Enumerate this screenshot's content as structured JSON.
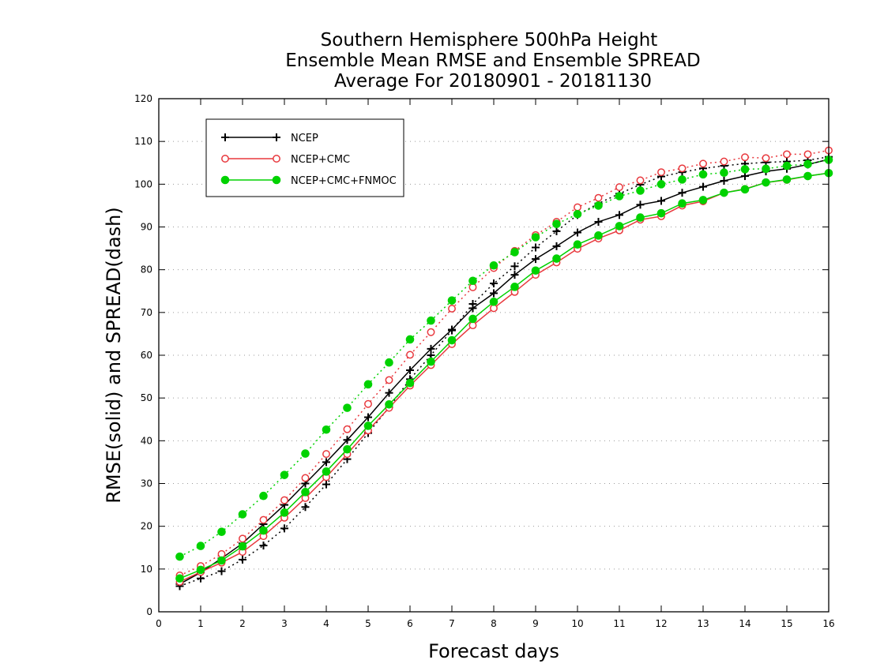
{
  "chart_data": {
    "type": "line",
    "title_lines": [
      "Southern Hemisphere 500hPa Height",
      "Ensemble Mean RMSE and Ensemble SPREAD",
      "Average For 20180901 - 20181130"
    ],
    "xlabel": "Forecast days",
    "ylabel": "RMSE(solid) and SPREAD(dash)",
    "xlim": [
      0,
      16
    ],
    "ylim": [
      0,
      120
    ],
    "x_ticks": [
      0,
      1,
      2,
      3,
      4,
      5,
      6,
      7,
      8,
      9,
      10,
      11,
      12,
      13,
      14,
      15,
      16
    ],
    "y_ticks": [
      0,
      10,
      20,
      30,
      40,
      50,
      60,
      70,
      80,
      90,
      100,
      110,
      120
    ],
    "grid": "horizontal dotted",
    "legend_position": "top-left",
    "x": [
      0.5,
      1,
      1.5,
      2,
      2.5,
      3,
      3.5,
      4,
      4.5,
      5,
      5.5,
      6,
      6.5,
      7,
      7.5,
      8,
      8.5,
      9,
      9.5,
      10,
      10.5,
      11,
      11.5,
      12,
      12.5,
      13,
      13.5,
      14,
      14.5,
      15,
      15.5,
      16
    ],
    "series": [
      {
        "name": "NCEP",
        "color": "#000000",
        "marker": "plus",
        "rmse": [
          6.5,
          9.2,
          12.5,
          16.0,
          20.5,
          25.0,
          30.0,
          35.0,
          40.2,
          45.5,
          51.2,
          56.5,
          61.5,
          66.0,
          71.0,
          74.5,
          78.8,
          82.5,
          85.5,
          88.7,
          91.2,
          92.8,
          95.2,
          96.1,
          98.0,
          99.4,
          100.8,
          101.9,
          103.0,
          103.6,
          104.6,
          105.8
        ],
        "spread": [
          6.0,
          7.8,
          9.5,
          12.2,
          15.5,
          19.5,
          24.5,
          29.8,
          35.7,
          41.8,
          47.8,
          54.4,
          60.0,
          65.8,
          72.0,
          76.8,
          80.8,
          85.2,
          89.0,
          92.8,
          95.5,
          97.8,
          99.9,
          101.8,
          102.8,
          103.7,
          104.3,
          104.8,
          105.1,
          105.3,
          105.6,
          106.4
        ]
      },
      {
        "name": "NCEP+CMC",
        "color": "#e8383d",
        "marker": "open-circle",
        "rmse": [
          7.0,
          9.3,
          11.5,
          14.0,
          17.7,
          22.0,
          26.6,
          31.5,
          36.9,
          42.4,
          47.7,
          52.9,
          57.7,
          62.6,
          67.0,
          71.0,
          74.8,
          78.8,
          81.7,
          84.9,
          87.3,
          89.2,
          91.7,
          92.5,
          95.0,
          96.0,
          98.0,
          98.9,
          100.4,
          101.0,
          101.9,
          102.6
        ],
        "spread": [
          8.5,
          10.7,
          13.5,
          17.1,
          21.5,
          26.1,
          31.3,
          36.9,
          42.7,
          48.6,
          54.2,
          60.1,
          65.4,
          70.9,
          75.9,
          80.4,
          84.4,
          88.1,
          91.2,
          94.6,
          96.8,
          99.3,
          100.9,
          102.8,
          103.7,
          104.8,
          105.3,
          106.3,
          106.1,
          107.0,
          107.0,
          107.9
        ]
      },
      {
        "name": "NCEP+CMC+FNMOC",
        "color": "#00d200",
        "marker": "filled-circle",
        "rmse": [
          7.8,
          9.8,
          12.0,
          15.3,
          19.0,
          23.2,
          28.0,
          32.8,
          38.0,
          43.5,
          48.5,
          53.5,
          58.5,
          63.5,
          68.5,
          72.5,
          76.0,
          79.8,
          82.6,
          85.9,
          88.0,
          90.2,
          92.2,
          93.2,
          95.5,
          96.3,
          98.0,
          98.8,
          100.4,
          101.1,
          101.9,
          102.6
        ],
        "spread": [
          12.9,
          15.4,
          18.7,
          22.8,
          27.1,
          32.0,
          37.0,
          42.6,
          47.7,
          53.2,
          58.3,
          63.7,
          68.1,
          72.8,
          77.4,
          81.0,
          84.1,
          87.6,
          90.7,
          93.0,
          95.0,
          97.2,
          98.5,
          100.0,
          101.1,
          102.3,
          102.7,
          103.5,
          103.6,
          104.3,
          104.7,
          105.7
        ]
      }
    ]
  }
}
